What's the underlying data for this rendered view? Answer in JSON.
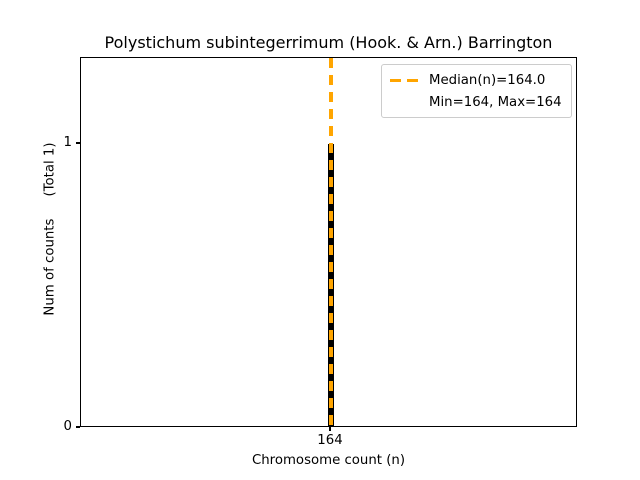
{
  "chart_data": {
    "type": "bar",
    "title": "Polystichum subintegerrimum (Hook. & Arn.) Barrington",
    "xlabel": "Chromosome count (n)",
    "ylabel": "Num of counts",
    "ylabel_secondary": "(Total 1)",
    "categories": [
      164
    ],
    "values": [
      1
    ],
    "x_tick_labels": [
      "164"
    ],
    "y_tick_labels": {
      "zero": "0",
      "one": "1"
    },
    "ylim": [
      0,
      1.3
    ],
    "grid": false,
    "bar_color": "#000000",
    "median_line": {
      "x": 164,
      "value": 164.0,
      "style": "dashed",
      "color": "#FFA500"
    },
    "stats": {
      "median": 164.0,
      "min": 164,
      "max": 164,
      "total_counts": 1
    },
    "legend": {
      "position": "upper right",
      "entries": [
        {
          "label": "Median(n)=164.0",
          "handle": "orange-dashed-line"
        },
        {
          "label": "Min=164, Max=164",
          "handle": "none"
        }
      ]
    }
  }
}
